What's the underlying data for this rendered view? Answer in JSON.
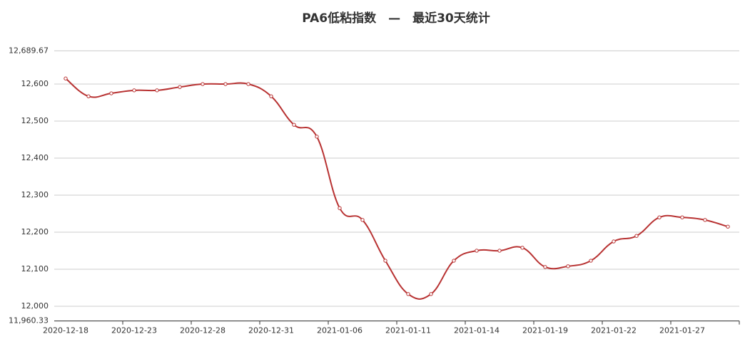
{
  "chart_data": {
    "type": "line",
    "title": "PA6低粘指数　—　最近30天统计",
    "categories": [
      "2020-12-18",
      null,
      null,
      "2020-12-23",
      null,
      null,
      "2020-12-28",
      null,
      null,
      "2020-12-31",
      null,
      null,
      "2021-01-06",
      null,
      null,
      "2021-01-11",
      null,
      null,
      "2021-01-14",
      null,
      null,
      "2021-01-19",
      null,
      null,
      "2021-01-22",
      null,
      null,
      "2021-01-27",
      null,
      null
    ],
    "series": [
      {
        "name": "PA6低粘指数",
        "color": "#b83232",
        "values": [
          12615,
          12567,
          12575,
          12583,
          12583,
          12592,
          12600,
          12600,
          12600,
          12567,
          12490,
          12458,
          12265,
          12233,
          12123,
          12033,
          12033,
          12123,
          12150,
          12150,
          12158,
          12106,
          12108,
          12123,
          12175,
          12190,
          12240,
          12240,
          12233,
          12215
        ]
      }
    ],
    "ylim": [
      11960.33,
      12689.67
    ],
    "yticks": [
      {
        "value": 11960.33,
        "label": "11,960.33"
      },
      {
        "value": 12000,
        "label": "12,000"
      },
      {
        "value": 12100,
        "label": "12,100"
      },
      {
        "value": 12200,
        "label": "12,200"
      },
      {
        "value": 12300,
        "label": "12,300"
      },
      {
        "value": 12400,
        "label": "12,400"
      },
      {
        "value": 12500,
        "label": "12,500"
      },
      {
        "value": 12600,
        "label": "12,600"
      },
      {
        "value": 12689.67,
        "label": "12,689.67"
      }
    ],
    "grid": true
  }
}
